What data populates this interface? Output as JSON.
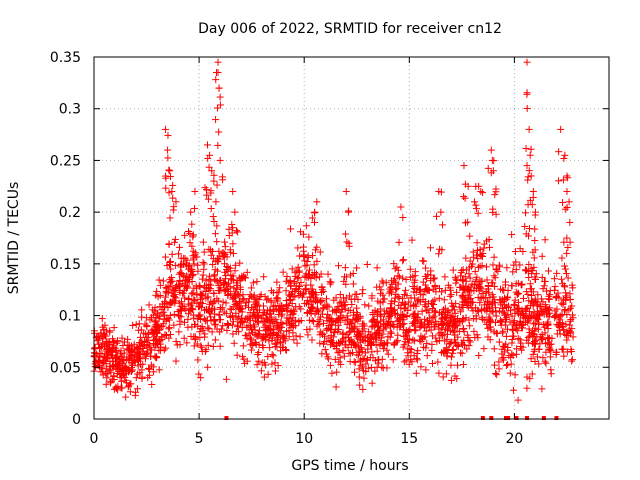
{
  "chart_data": {
    "type": "scatter",
    "title": "Day 006 of 2022, SRMTID for receiver cn12",
    "xlabel": "GPS time / hours",
    "ylabel": "SRMTID / TECUs",
    "xlim": [
      0,
      24.5
    ],
    "ylim": [
      0,
      0.35
    ],
    "xticks": [
      0,
      5,
      10,
      15,
      20
    ],
    "xtick_labels": [
      "0",
      "5",
      "10",
      "15",
      "20"
    ],
    "yticks": [
      0,
      0.05,
      0.1,
      0.15,
      0.2,
      0.25,
      0.3,
      0.35
    ],
    "ytick_labels": [
      "0",
      "0.05",
      "0.1",
      "0.15",
      "0.2",
      "0.25",
      "0.3",
      "0.35"
    ],
    "grid": true,
    "marker": "+",
    "series_color": "#ff0000",
    "series": [
      {
        "name": "SRMTID cn12",
        "trend": [
          [
            0.0,
            0.065
          ],
          [
            0.5,
            0.068
          ],
          [
            1.0,
            0.055
          ],
          [
            1.5,
            0.05
          ],
          [
            2.0,
            0.06
          ],
          [
            2.5,
            0.07
          ],
          [
            3.0,
            0.085
          ],
          [
            3.5,
            0.12
          ],
          [
            4.0,
            0.125
          ],
          [
            4.5,
            0.13
          ],
          [
            5.0,
            0.11
          ],
          [
            5.5,
            0.115
          ],
          [
            6.0,
            0.12
          ],
          [
            6.5,
            0.12
          ],
          [
            7.0,
            0.11
          ],
          [
            7.5,
            0.095
          ],
          [
            8.0,
            0.085
          ],
          [
            8.5,
            0.09
          ],
          [
            9.0,
            0.1
          ],
          [
            9.5,
            0.115
          ],
          [
            10.0,
            0.13
          ],
          [
            10.5,
            0.12
          ],
          [
            11.0,
            0.095
          ],
          [
            11.5,
            0.085
          ],
          [
            12.0,
            0.09
          ],
          [
            12.5,
            0.085
          ],
          [
            13.0,
            0.08
          ],
          [
            13.5,
            0.09
          ],
          [
            14.0,
            0.1
          ],
          [
            14.5,
            0.11
          ],
          [
            15.0,
            0.09
          ],
          [
            15.5,
            0.1
          ],
          [
            16.0,
            0.115
          ],
          [
            16.5,
            0.085
          ],
          [
            17.0,
            0.09
          ],
          [
            17.5,
            0.11
          ],
          [
            18.0,
            0.12
          ],
          [
            18.5,
            0.125
          ],
          [
            19.0,
            0.115
          ],
          [
            19.5,
            0.09
          ],
          [
            20.0,
            0.095
          ],
          [
            20.5,
            0.11
          ],
          [
            21.0,
            0.09
          ],
          [
            21.5,
            0.095
          ],
          [
            22.0,
            0.1
          ],
          [
            22.5,
            0.1
          ],
          [
            22.8,
            0.105
          ]
        ],
        "spread": [
          [
            0.0,
            0.02
          ],
          [
            3.0,
            0.03
          ],
          [
            3.5,
            0.05
          ],
          [
            6.0,
            0.05
          ],
          [
            7.0,
            0.04
          ],
          [
            12.0,
            0.04
          ],
          [
            17.0,
            0.045
          ],
          [
            20.0,
            0.05
          ],
          [
            22.8,
            0.045
          ]
        ],
        "outliers": [
          [
            3.4,
            0.28
          ],
          [
            3.5,
            0.26
          ],
          [
            3.6,
            0.24
          ],
          [
            3.7,
            0.22
          ],
          [
            3.9,
            0.21
          ],
          [
            4.6,
            0.2
          ],
          [
            4.8,
            0.22
          ],
          [
            5.4,
            0.265
          ],
          [
            5.5,
            0.255
          ],
          [
            5.6,
            0.24
          ],
          [
            5.7,
            0.23
          ],
          [
            5.8,
            0.21
          ],
          [
            5.9,
            0.345
          ],
          [
            5.9,
            0.335
          ],
          [
            5.95,
            0.32
          ],
          [
            6.0,
            0.25
          ],
          [
            6.6,
            0.22
          ],
          [
            6.7,
            0.2
          ],
          [
            10.5,
            0.2
          ],
          [
            10.6,
            0.21
          ],
          [
            12.0,
            0.22
          ],
          [
            12.1,
            0.2
          ],
          [
            14.6,
            0.205
          ],
          [
            16.4,
            0.22
          ],
          [
            16.5,
            0.2
          ],
          [
            17.6,
            0.245
          ],
          [
            17.8,
            0.225
          ],
          [
            18.1,
            0.21
          ],
          [
            18.3,
            0.225
          ],
          [
            18.4,
            0.22
          ],
          [
            18.9,
            0.26
          ],
          [
            18.95,
            0.25
          ],
          [
            19.0,
            0.24
          ],
          [
            20.6,
            0.345
          ],
          [
            20.7,
            0.28
          ],
          [
            20.75,
            0.255
          ],
          [
            20.6,
            0.245
          ],
          [
            20.8,
            0.235
          ],
          [
            20.9,
            0.22
          ],
          [
            21.0,
            0.2
          ],
          [
            22.2,
            0.28
          ],
          [
            22.4,
            0.255
          ],
          [
            22.5,
            0.235
          ],
          [
            22.5,
            0.22
          ],
          [
            22.6,
            0.21
          ]
        ],
        "zero_values_x": [
          6.3,
          18.5,
          18.9,
          19.6,
          19.7,
          20.1,
          20.6,
          21.4,
          22.0
        ]
      }
    ]
  }
}
